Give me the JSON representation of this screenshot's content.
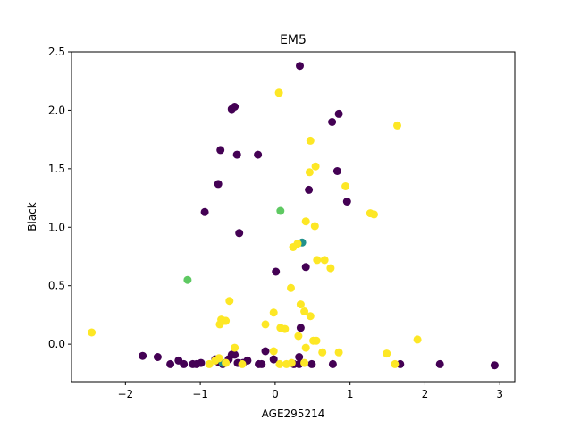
{
  "chart_data": {
    "type": "scatter",
    "title": "EM5",
    "xlabel": "AGE295214",
    "ylabel": "Black",
    "xlim": [
      -2.72,
      3.2
    ],
    "ylim": [
      -0.32,
      2.5
    ],
    "xticks": [
      "−2",
      "−1",
      "0",
      "1",
      "2",
      "3"
    ],
    "xtick_values": [
      -2,
      -1,
      0,
      1,
      2,
      3
    ],
    "yticks": [
      "0.0",
      "0.5",
      "1.0",
      "1.5",
      "2.0",
      "2.5"
    ],
    "ytick_values": [
      0.0,
      0.5,
      1.0,
      1.5,
      2.0,
      2.5
    ],
    "grid": false,
    "legend": "none",
    "colors": {
      "purple": "#440154",
      "teal": "#21918c",
      "green": "#5ec962",
      "yellow": "#fde725"
    },
    "series": [
      {
        "color": "purple",
        "points": [
          [
            0.33,
            2.38
          ],
          [
            -0.58,
            2.01
          ],
          [
            -0.54,
            2.03
          ],
          [
            0.76,
            1.9
          ],
          [
            0.85,
            1.97
          ],
          [
            -0.73,
            1.66
          ],
          [
            -0.51,
            1.62
          ],
          [
            -0.23,
            1.62
          ],
          [
            0.83,
            1.48
          ],
          [
            -0.76,
            1.37
          ],
          [
            0.45,
            1.32
          ],
          [
            0.96,
            1.22
          ],
          [
            -0.94,
            1.13
          ],
          [
            -0.48,
            0.95
          ],
          [
            0.01,
            0.62
          ],
          [
            0.41,
            0.66
          ],
          [
            0.34,
            0.14
          ],
          [
            -1.77,
            -0.1
          ],
          [
            -1.57,
            -0.11
          ],
          [
            -1.4,
            -0.17
          ],
          [
            -1.29,
            -0.14
          ],
          [
            -1.22,
            -0.17
          ],
          [
            -1.1,
            -0.17
          ],
          [
            -1.05,
            -0.17
          ],
          [
            -0.99,
            -0.16
          ],
          [
            -0.8,
            -0.13
          ],
          [
            -0.76,
            -0.15
          ],
          [
            -0.7,
            -0.17
          ],
          [
            -0.62,
            -0.13
          ],
          [
            -0.58,
            -0.09
          ],
          [
            -0.54,
            -0.09
          ],
          [
            -0.5,
            -0.16
          ],
          [
            -0.43,
            -0.16
          ],
          [
            -0.37,
            -0.14
          ],
          [
            -0.22,
            -0.17
          ],
          [
            -0.18,
            -0.17
          ],
          [
            -0.13,
            -0.06
          ],
          [
            -0.02,
            -0.13
          ],
          [
            0.25,
            -0.17
          ],
          [
            0.32,
            -0.17
          ],
          [
            0.32,
            -0.11
          ],
          [
            0.49,
            -0.17
          ],
          [
            0.77,
            -0.17
          ],
          [
            1.67,
            -0.17
          ],
          [
            2.2,
            -0.17
          ],
          [
            2.93,
            -0.18
          ]
        ]
      },
      {
        "color": "teal",
        "points": [
          [
            0.36,
            0.87
          ],
          [
            -0.7,
            -0.16
          ]
        ]
      },
      {
        "color": "green",
        "points": [
          [
            0.07,
            1.14
          ],
          [
            -1.17,
            0.55
          ]
        ]
      },
      {
        "color": "yellow",
        "points": [
          [
            0.05,
            2.15
          ],
          [
            1.63,
            1.87
          ],
          [
            0.47,
            1.74
          ],
          [
            0.54,
            1.52
          ],
          [
            0.46,
            1.47
          ],
          [
            0.94,
            1.35
          ],
          [
            1.27,
            1.12
          ],
          [
            1.32,
            1.11
          ],
          [
            0.41,
            1.05
          ],
          [
            0.53,
            1.01
          ],
          [
            0.24,
            0.83
          ],
          [
            0.3,
            0.86
          ],
          [
            0.56,
            0.72
          ],
          [
            0.66,
            0.72
          ],
          [
            0.74,
            0.65
          ],
          [
            0.21,
            0.48
          ],
          [
            0.34,
            0.34
          ],
          [
            -0.61,
            0.37
          ],
          [
            0.39,
            0.28
          ],
          [
            -0.02,
            0.27
          ],
          [
            -0.68,
            0.2
          ],
          [
            -0.72,
            0.21
          ],
          [
            -0.74,
            0.17
          ],
          [
            -0.66,
            0.2
          ],
          [
            0.47,
            0.24
          ],
          [
            -0.13,
            0.17
          ],
          [
            0.07,
            0.14
          ],
          [
            0.13,
            0.13
          ],
          [
            0.31,
            0.07
          ],
          [
            -2.45,
            0.1
          ],
          [
            -0.54,
            -0.03
          ],
          [
            1.9,
            0.04
          ],
          [
            0.51,
            0.03
          ],
          [
            0.55,
            0.03
          ],
          [
            0.41,
            -0.03
          ],
          [
            0.63,
            -0.07
          ],
          [
            0.85,
            -0.07
          ],
          [
            1.49,
            -0.08
          ],
          [
            -0.75,
            -0.12
          ],
          [
            -0.8,
            -0.14
          ],
          [
            -0.02,
            -0.06
          ],
          [
            0.06,
            -0.17
          ],
          [
            0.15,
            -0.17
          ],
          [
            0.22,
            -0.16
          ],
          [
            0.39,
            -0.16
          ],
          [
            1.6,
            -0.17
          ],
          [
            -0.44,
            -0.17
          ],
          [
            -0.88,
            -0.17
          ],
          [
            -0.66,
            -0.16
          ]
        ]
      }
    ]
  }
}
